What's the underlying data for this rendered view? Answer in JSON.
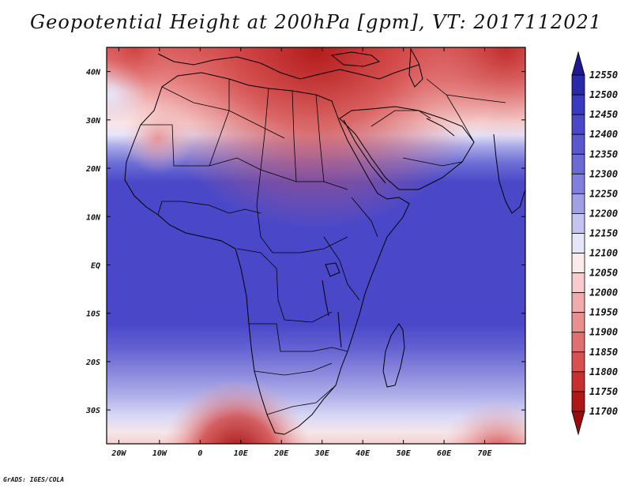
{
  "title": "Geopotential Height at 200hPa [gpm], VT: 2017112021",
  "credit": "GrADS: IGES/COLA",
  "map": {
    "lon_range": [
      -23,
      80
    ],
    "lat_range": [
      -37,
      45
    ],
    "lon_ticks": [
      {
        "value": -20,
        "label": "20W"
      },
      {
        "value": -10,
        "label": "10W"
      },
      {
        "value": 0,
        "label": "0"
      },
      {
        "value": 10,
        "label": "10E"
      },
      {
        "value": 20,
        "label": "20E"
      },
      {
        "value": 30,
        "label": "30E"
      },
      {
        "value": 40,
        "label": "40E"
      },
      {
        "value": 50,
        "label": "50E"
      },
      {
        "value": 60,
        "label": "60E"
      },
      {
        "value": 70,
        "label": "70E"
      }
    ],
    "lat_ticks": [
      {
        "value": 40,
        "label": "40N"
      },
      {
        "value": 30,
        "label": "30N"
      },
      {
        "value": 20,
        "label": "20N"
      },
      {
        "value": 10,
        "label": "10N"
      },
      {
        "value": 0,
        "label": "EQ"
      },
      {
        "value": -10,
        "label": "10S"
      },
      {
        "value": -20,
        "label": "20S"
      },
      {
        "value": -30,
        "label": "30S"
      }
    ]
  },
  "colorbar": {
    "levels": [
      "12550",
      "12500",
      "12450",
      "12400",
      "12350",
      "12300",
      "12250",
      "12200",
      "12150",
      "12100",
      "12050",
      "12000",
      "11950",
      "11900",
      "11850",
      "11800",
      "11750",
      "11700"
    ],
    "colors": [
      "#201890",
      "#2a2aa8",
      "#3a3ac0",
      "#4a48c8",
      "#5a58cc",
      "#6c6ad4",
      "#8080dc",
      "#a0a0e4",
      "#c4c4f0",
      "#e6e6fa",
      "#fcebeb",
      "#f8cccc",
      "#f0acac",
      "#e89090",
      "#e07070",
      "#d85050",
      "#c83030",
      "#b01818",
      "#9a0c0c"
    ]
  }
}
